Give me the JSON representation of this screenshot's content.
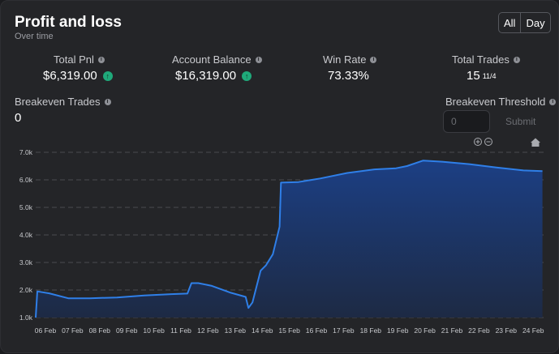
{
  "header": {
    "title": "Profit and loss",
    "subtitle": "Over time"
  },
  "range_toggle": {
    "options": [
      "All",
      "Day"
    ]
  },
  "stats": {
    "total_pnl": {
      "label": "Total Pnl",
      "value": "$6,319.00"
    },
    "account_balance": {
      "label": "Account Balance",
      "value": "$16,319.00"
    },
    "win_rate": {
      "label": "Win Rate",
      "value": "73.33%"
    },
    "total_trades": {
      "label": "Total Trades",
      "value": "15",
      "detail": "11/4"
    },
    "breakeven_trades": {
      "label": "Breakeven Trades",
      "value": "0"
    },
    "breakeven_threshold": {
      "label": "Breakeven Threshold",
      "placeholder": "0",
      "submit_label": "Submit"
    }
  },
  "icons": [
    "info-icon",
    "arrow-up-icon",
    "zoom-in-icon",
    "zoom-out-icon",
    "home-icon"
  ],
  "colors": {
    "line": "#2f7fe8",
    "area_top": "#1c3f84",
    "area_bottom": "#1d2a44",
    "positive": "#1fa97a"
  },
  "chart_data": {
    "type": "area",
    "x": [
      "06 Feb",
      "07 Feb",
      "08 Feb",
      "09 Feb",
      "10 Feb",
      "11 Feb",
      "12 Feb",
      "13 Feb",
      "14 Feb",
      "15 Feb",
      "16 Feb",
      "17 Feb",
      "18 Feb",
      "19 Feb",
      "20 Feb",
      "21 Feb",
      "22 Feb",
      "23 Feb",
      "24 Feb"
    ],
    "y_tick_labels": [
      "1.0k",
      "2.0k",
      "3.0k",
      "4.0k",
      "5.0k",
      "6.0k",
      "7.0k"
    ],
    "ylim": [
      1000,
      7000
    ],
    "grid": true,
    "series": [
      {
        "points": [
          [
            0,
            1000
          ],
          [
            0.05,
            1950
          ],
          [
            0.5,
            1880
          ],
          [
            1.2,
            1700
          ],
          [
            2,
            1700
          ],
          [
            3,
            1730
          ],
          [
            4,
            1800
          ],
          [
            5,
            1850
          ],
          [
            5.6,
            1870
          ],
          [
            5.75,
            2250
          ],
          [
            6,
            2250
          ],
          [
            6.5,
            2150
          ],
          [
            7.2,
            1900
          ],
          [
            7.75,
            1750
          ],
          [
            7.85,
            1350
          ],
          [
            8,
            1550
          ],
          [
            8.3,
            2700
          ],
          [
            8.5,
            2900
          ],
          [
            8.75,
            3300
          ],
          [
            9,
            4300
          ],
          [
            9.05,
            5900
          ],
          [
            9.7,
            5920
          ],
          [
            10.5,
            6050
          ],
          [
            11.5,
            6250
          ],
          [
            12.5,
            6380
          ],
          [
            13.3,
            6420
          ],
          [
            13.7,
            6500
          ],
          [
            14.3,
            6700
          ],
          [
            15,
            6660
          ],
          [
            16,
            6570
          ],
          [
            17,
            6450
          ],
          [
            18,
            6340
          ],
          [
            18.7,
            6319
          ]
        ]
      }
    ]
  }
}
